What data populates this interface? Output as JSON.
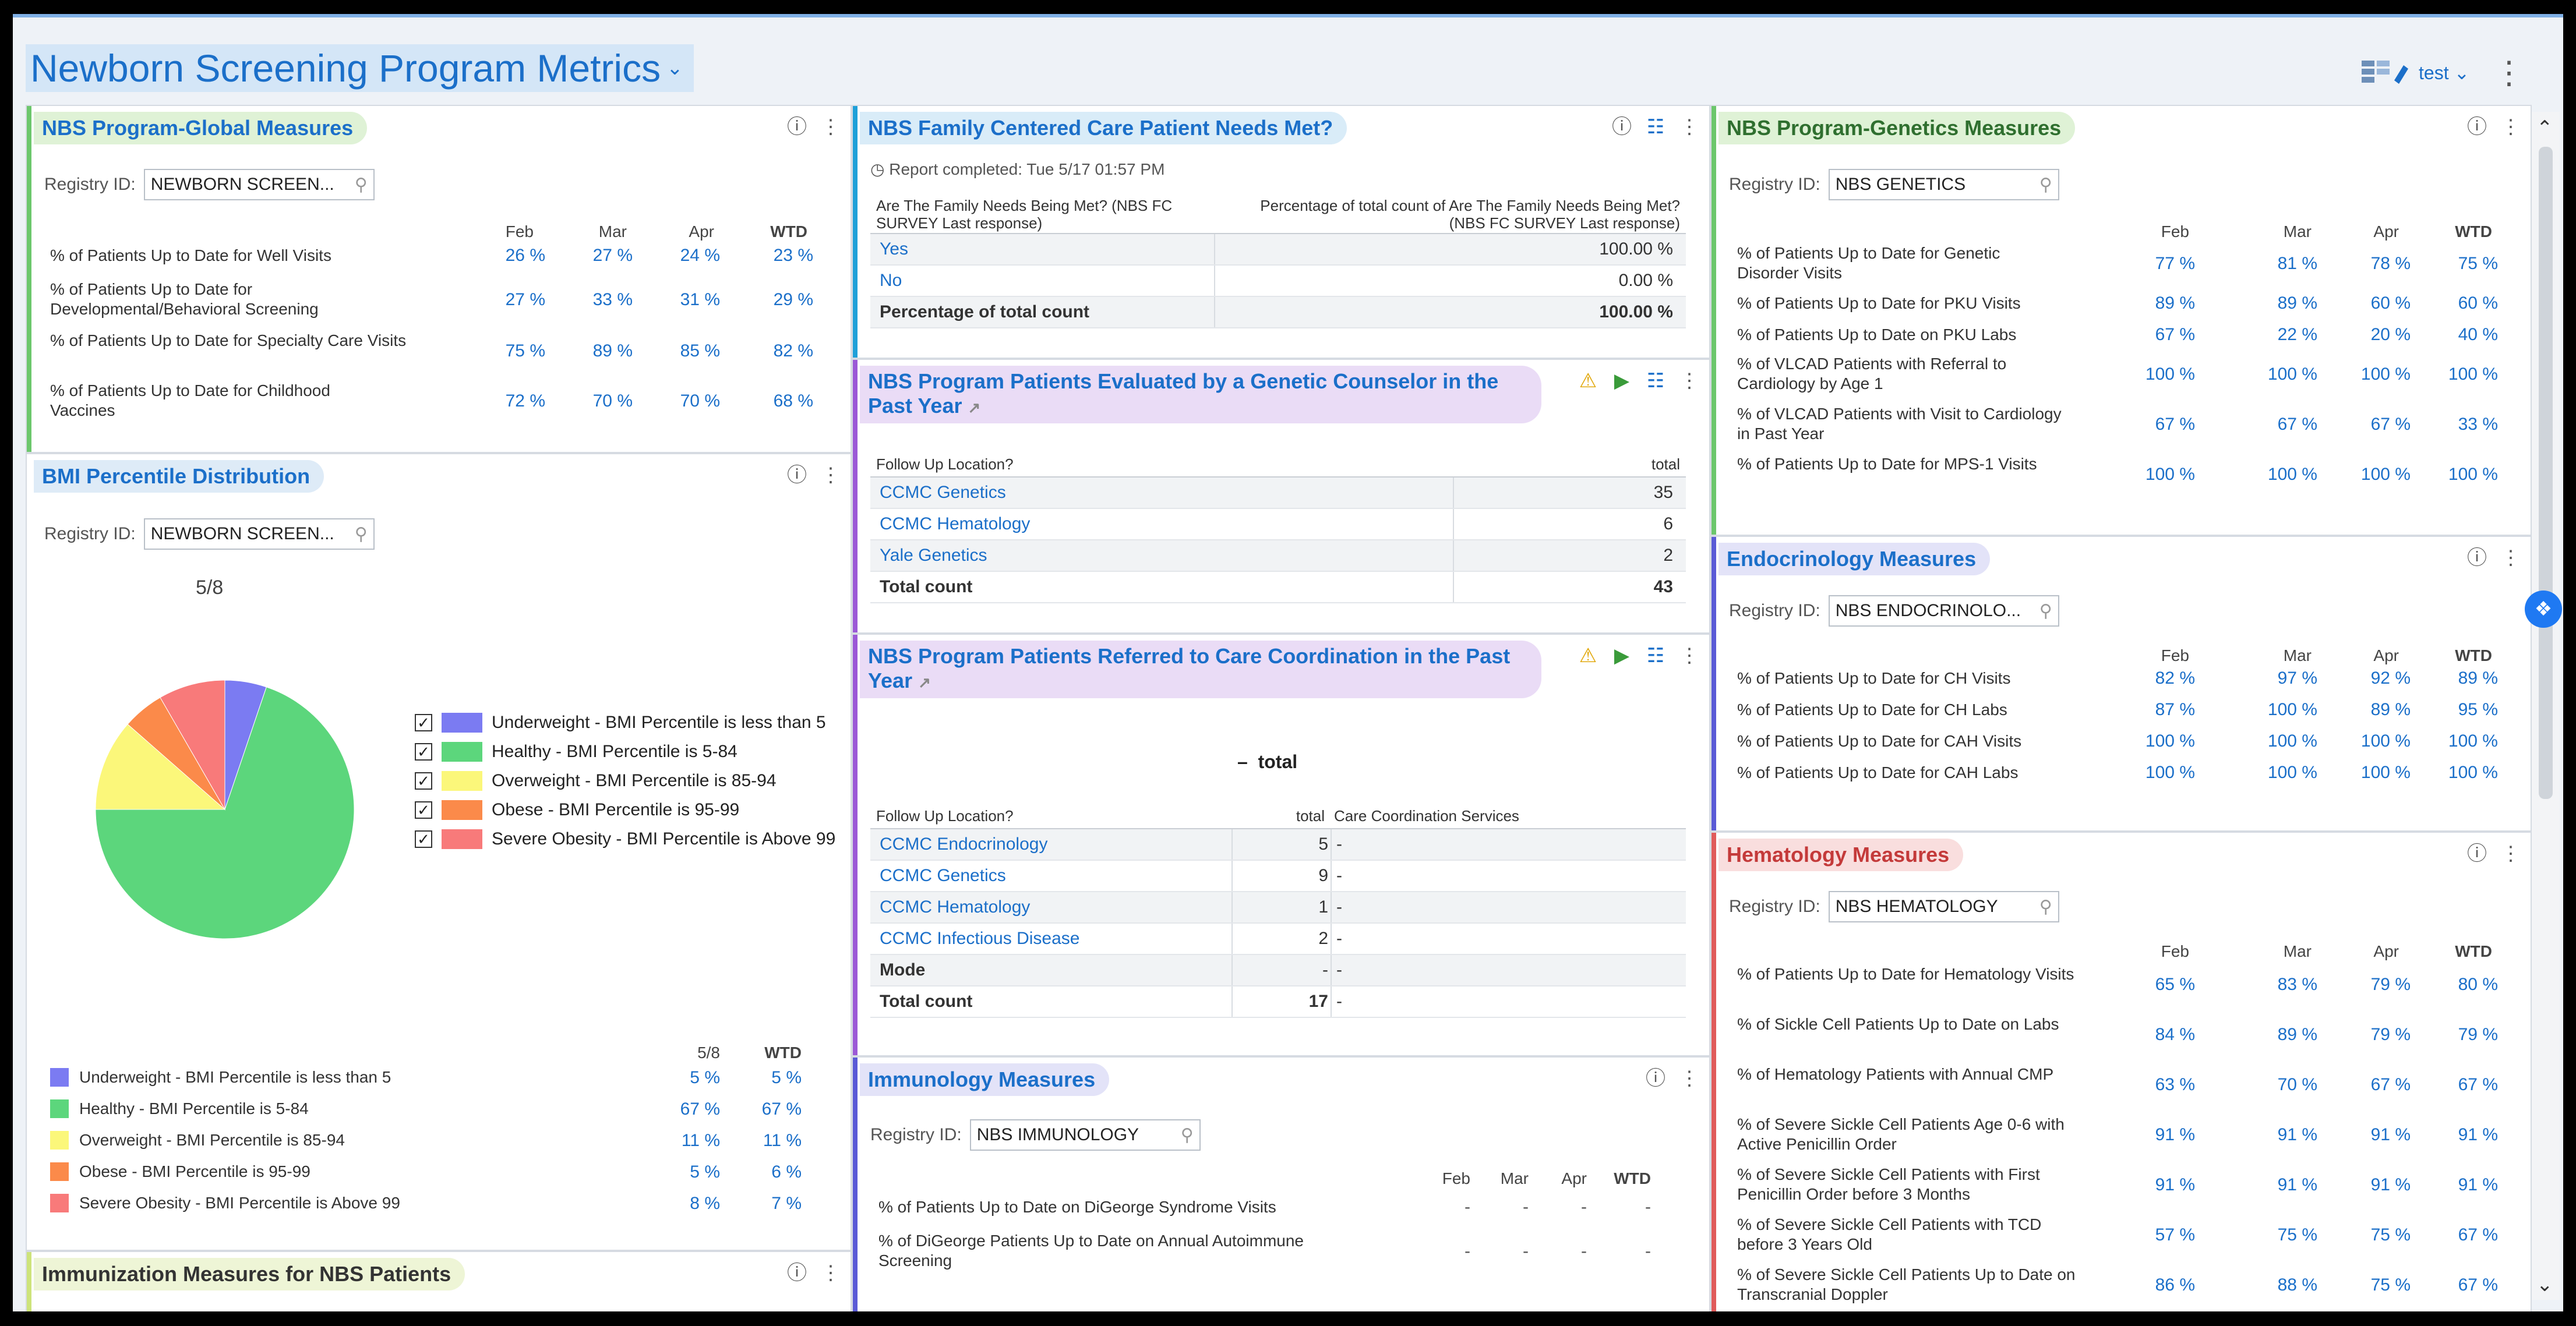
{
  "page": {
    "title": "Newborn Screening Program Metrics",
    "user_label": "test",
    "more_icon": "vertical-ellipsis-icon",
    "display_icon": "display-settings-icon"
  },
  "colors": {
    "accent_blue": "#1b6fc9",
    "green": "#6cc76c",
    "purple": "#9b59d6",
    "red": "#e05b5b",
    "teal": "#1fa0d8",
    "indigo": "#5a5ad6"
  },
  "global": {
    "title": "NBS Program-Global Measures",
    "registry_label": "Registry ID:",
    "registry_value": "NEWBORN SCREEN...",
    "columns": [
      "Feb",
      "Mar",
      "Apr",
      "WTD"
    ],
    "rows": [
      {
        "label": "% of Patients Up to Date for Well Visits",
        "values": [
          "26 %",
          "27 %",
          "24 %",
          "23 %"
        ]
      },
      {
        "label": "% of Patients Up to Date for Developmental/Behavioral Screening",
        "values": [
          "27 %",
          "33 %",
          "31 %",
          "29 %"
        ]
      },
      {
        "label": "% of Patients Up to Date for Specialty Care Visits",
        "values": [
          "75 %",
          "89 %",
          "85 %",
          "82 %"
        ]
      },
      {
        "label": "% of Patients Up to Date for Childhood Vaccines",
        "values": [
          "72 %",
          "70 %",
          "70 %",
          "68 %"
        ]
      }
    ]
  },
  "bmi": {
    "title": "BMI Percentile Distribution",
    "registry_label": "Registry ID:",
    "registry_value": "NEWBORN SCREEN...",
    "date": "5/8",
    "legend": [
      {
        "label": "Underweight - BMI Percentile is less than 5",
        "color": "#7b7bf2"
      },
      {
        "label": "Healthy - BMI Percentile is 5-84",
        "color": "#5cd67c"
      },
      {
        "label": "Overweight - BMI Percentile is 85-94",
        "color": "#fbf77a"
      },
      {
        "label": "Obese - BMI Percentile is 95-99",
        "color": "#fb8a4a"
      },
      {
        "label": "Severe Obesity - BMI Percentile is Above 99",
        "color": "#f87a7a"
      }
    ],
    "table_columns": [
      "5/8",
      "WTD"
    ],
    "table_rows": [
      {
        "values": [
          "5 %",
          "5 %"
        ]
      },
      {
        "values": [
          "67 %",
          "67 %"
        ]
      },
      {
        "values": [
          "11 %",
          "11 %"
        ]
      },
      {
        "values": [
          "5 %",
          "6 %"
        ]
      },
      {
        "values": [
          "8 %",
          "7 %"
        ]
      }
    ]
  },
  "chart_data": {
    "type": "pie",
    "categories": [
      "Underweight - BMI Percentile is less than 5",
      "Healthy - BMI Percentile is 5-84",
      "Overweight - BMI Percentile is 85-94",
      "Obese - BMI Percentile is 95-99",
      "Severe Obesity - BMI Percentile is Above 99"
    ],
    "values": [
      5,
      67,
      11,
      5,
      8
    ],
    "title": "5/8",
    "legend": "right"
  },
  "immunization": {
    "title": "Immunization Measures for NBS Patients"
  },
  "family": {
    "title": "NBS Family Centered Care Patient Needs Met?",
    "report": "Report completed: Tue 5/17 01:57 PM",
    "col1": "Are The Family Needs Being Met? (NBS FC SURVEY Last response)",
    "col2": "Percentage of total count of Are The Family Needs Being Met? (NBS FC SURVEY Last response)",
    "rows": [
      {
        "label": "Yes",
        "value": "100.00 %"
      },
      {
        "label": "No",
        "value": "0.00 %"
      }
    ],
    "total_label": "Percentage of total count",
    "total_value": "100.00 %"
  },
  "genetic_counselor": {
    "title": "NBS Program Patients Evaluated by a Genetic Counselor in the Past Year",
    "col1": "Follow Up Location?",
    "col2": "total",
    "rows": [
      {
        "label": "CCMC Genetics",
        "value": "35"
      },
      {
        "label": "CCMC Hematology",
        "value": "6"
      },
      {
        "label": "Yale Genetics",
        "value": "2"
      }
    ],
    "total_label": "Total count",
    "total_value": "43"
  },
  "care_coord": {
    "title": "NBS Program Patients Referred to Care Coordination in the Past Year",
    "collapse_symbol": "–",
    "header_total": "total",
    "col1": "Follow Up Location?",
    "col2": "total",
    "col3": "Care Coordination Services",
    "rows": [
      {
        "label": "CCMC Endocrinology",
        "value": "5",
        "extra": "-"
      },
      {
        "label": "CCMC Genetics",
        "value": "9",
        "extra": "-"
      },
      {
        "label": "CCMC Hematology",
        "value": "1",
        "extra": "-"
      },
      {
        "label": "CCMC Infectious Disease",
        "value": "2",
        "extra": "-"
      },
      {
        "label": "Mode",
        "value": "-",
        "extra": "-"
      }
    ],
    "total_label": "Total count",
    "total_value": "17",
    "total_extra": "-"
  },
  "immunology": {
    "title": "Immunology Measures",
    "registry_label": "Registry ID:",
    "registry_value": "NBS IMMUNOLOGY",
    "columns": [
      "Feb",
      "Mar",
      "Apr",
      "WTD"
    ],
    "rows": [
      {
        "label": "% of Patients Up to Date on DiGeorge Syndrome Visits",
        "values": [
          "-",
          "-",
          "-",
          "-"
        ]
      },
      {
        "label": "% of DiGeorge Patients Up to Date on Annual Autoimmune Screening",
        "values": [
          "-",
          "-",
          "-",
          "-"
        ]
      }
    ]
  },
  "genetics": {
    "title": "NBS Program-Genetics Measures",
    "registry_label": "Registry ID:",
    "registry_value": "NBS GENETICS",
    "columns": [
      "Feb",
      "Mar",
      "Apr",
      "WTD"
    ],
    "rows": [
      {
        "label": "% of Patients Up to Date for Genetic Disorder Visits",
        "values": [
          "77 %",
          "81 %",
          "78 %",
          "75 %"
        ]
      },
      {
        "label": "% of Patients Up to Date for PKU Visits",
        "values": [
          "89 %",
          "89 %",
          "60 %",
          "60 %"
        ]
      },
      {
        "label": "% of Patients Up to Date on PKU Labs",
        "values": [
          "67 %",
          "22 %",
          "20 %",
          "40 %"
        ]
      },
      {
        "label": "% of VLCAD Patients with Referral to Cardiology by Age 1",
        "values": [
          "100 %",
          "100 %",
          "100 %",
          "100 %"
        ]
      },
      {
        "label": "% of VLCAD Patients with Visit to Cardiology in Past Year",
        "values": [
          "67 %",
          "67 %",
          "67 %",
          "33 %"
        ]
      },
      {
        "label": "% of Patients Up to Date for MPS-1 Visits",
        "values": [
          "100 %",
          "100 %",
          "100 %",
          "100 %"
        ]
      }
    ]
  },
  "endocrinology": {
    "title": "Endocrinology Measures",
    "registry_label": "Registry ID:",
    "registry_value": "NBS ENDOCRINOLO...",
    "columns": [
      "Feb",
      "Mar",
      "Apr",
      "WTD"
    ],
    "rows": [
      {
        "label": "% of Patients Up to Date for CH Visits",
        "values": [
          "82 %",
          "97 %",
          "92 %",
          "89 %"
        ]
      },
      {
        "label": "% of Patients Up to Date for CH Labs",
        "values": [
          "87 %",
          "100 %",
          "89 %",
          "95 %"
        ]
      },
      {
        "label": "% of Patients Up to Date for CAH Visits",
        "values": [
          "100 %",
          "100 %",
          "100 %",
          "100 %"
        ]
      },
      {
        "label": "% of Patients Up to Date for CAH Labs",
        "values": [
          "100 %",
          "100 %",
          "100 %",
          "100 %"
        ]
      }
    ]
  },
  "hematology": {
    "title": "Hematology Measures",
    "registry_label": "Registry ID:",
    "registry_value": "NBS HEMATOLOGY",
    "columns": [
      "Feb",
      "Mar",
      "Apr",
      "WTD"
    ],
    "rows": [
      {
        "label": "% of Patients Up to Date for Hematology Visits",
        "values": [
          "65 %",
          "83 %",
          "79 %",
          "80 %"
        ]
      },
      {
        "label": "% of Sickle Cell Patients Up to Date on Labs",
        "values": [
          "84 %",
          "89 %",
          "79 %",
          "79 %"
        ]
      },
      {
        "label": "% of Hematology Patients with Annual CMP",
        "values": [
          "63 %",
          "70 %",
          "67 %",
          "67 %"
        ]
      },
      {
        "label": "% of Severe Sickle Cell Patients Age 0-6 with Active Penicillin Order",
        "values": [
          "91 %",
          "91 %",
          "91 %",
          "91 %"
        ]
      },
      {
        "label": "% of Severe Sickle Cell Patients with First Penicillin Order before 3 Months",
        "values": [
          "91 %",
          "91 %",
          "91 %",
          "91 %"
        ]
      },
      {
        "label": "% of Severe Sickle Cell Patients with TCD before 3 Years Old",
        "values": [
          "57 %",
          "75 %",
          "75 %",
          "67 %"
        ]
      },
      {
        "label": "% of Severe Sickle Cell Patients Up to Date on Transcranial Doppler",
        "values": [
          "86 %",
          "88 %",
          "75 %",
          "67 %"
        ]
      }
    ]
  }
}
